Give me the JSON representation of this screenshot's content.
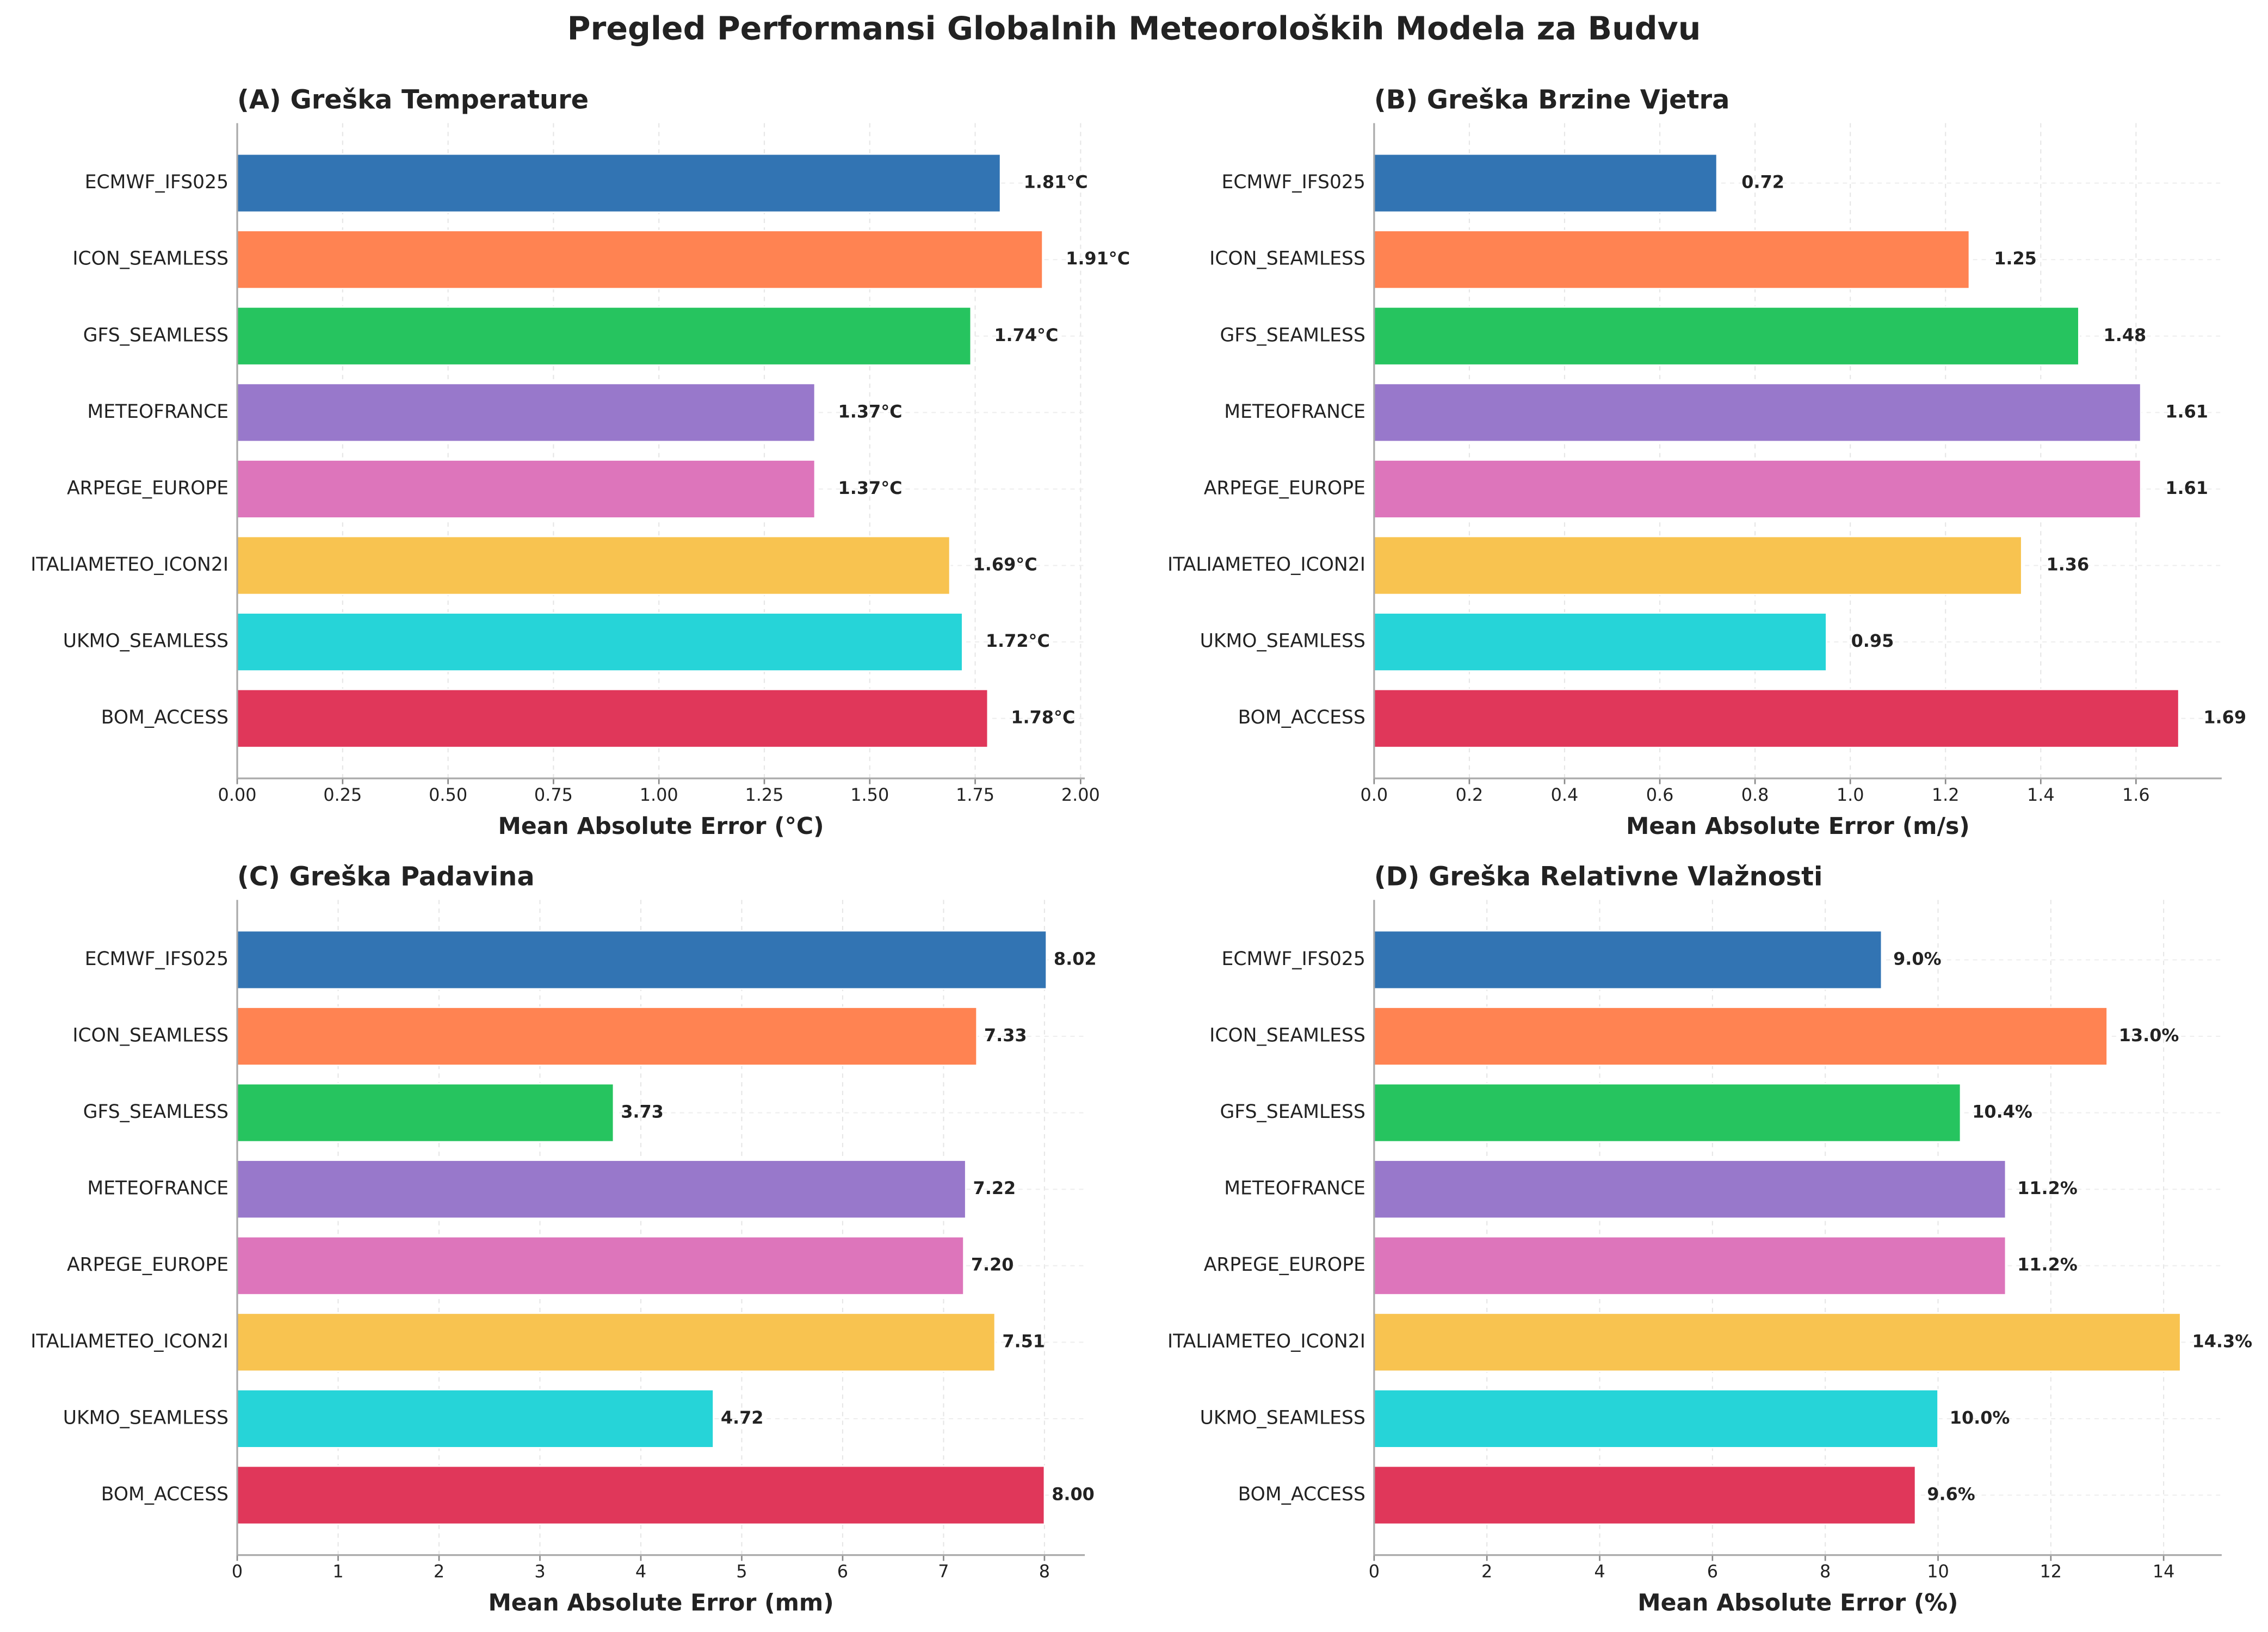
{
  "title": "Pregled Performansi Globalnih Meteoroloških Modela za Budvu",
  "chart_data": [
    {
      "type": "bar",
      "orientation": "horizontal",
      "title": "(A) Greška Temperature",
      "x_label": "Mean Absolute Error (°C)",
      "categories": [
        "ECMWF_IFS025",
        "ICON_SEAMLESS",
        "GFS_SEAMLESS",
        "METEOFRANCE",
        "ARPEGE_EUROPE",
        "ITALIAMETEO_ICON2I",
        "UKMO_SEAMLESS",
        "BOM_ACCESS"
      ],
      "colors": [
        "#3274b3",
        "#ff8352",
        "#26c45f",
        "#9878cb",
        "#dd75bb",
        "#f8c350",
        "#26d4d8",
        "#e0375a"
      ],
      "values": [
        1.81,
        1.91,
        1.74,
        1.37,
        1.37,
        1.69,
        1.72,
        1.78
      ],
      "value_labels": [
        "1.81°C",
        "1.91°C",
        "1.74°C",
        "1.37°C",
        "1.37°C",
        "1.69°C",
        "1.72°C",
        "1.78°C"
      ],
      "xlim": [
        0,
        2.01
      ],
      "xticks": [
        {
          "value": 0,
          "label": "0.00"
        },
        {
          "value": 0.25,
          "label": "0.25"
        },
        {
          "value": 0.5,
          "label": "0.50"
        },
        {
          "value": 0.75,
          "label": "0.75"
        },
        {
          "value": 1,
          "label": "1.00"
        },
        {
          "value": 1.25,
          "label": "1.25"
        },
        {
          "value": 1.5,
          "label": "1.50"
        },
        {
          "value": 1.75,
          "label": "1.75"
        },
        {
          "value": 2,
          "label": "2.00"
        }
      ],
      "grid": true
    },
    {
      "type": "bar",
      "orientation": "horizontal",
      "title": "(B) Greška Brzine Vjetra",
      "x_label": "Mean Absolute Error (m/s)",
      "categories": [
        "ECMWF_IFS025",
        "ICON_SEAMLESS",
        "GFS_SEAMLESS",
        "METEOFRANCE",
        "ARPEGE_EUROPE",
        "ITALIAMETEO_ICON2I",
        "UKMO_SEAMLESS",
        "BOM_ACCESS"
      ],
      "colors": [
        "#3274b3",
        "#ff8352",
        "#26c45f",
        "#9878cb",
        "#dd75bb",
        "#f8c350",
        "#26d4d8",
        "#e0375a"
      ],
      "values": [
        0.72,
        1.25,
        1.48,
        1.61,
        1.61,
        1.36,
        0.95,
        1.69
      ],
      "xlim": [
        0,
        1.78
      ],
      "xticks": [
        {
          "value": 0,
          "label": "0.0"
        },
        0.2,
        0.4,
        0.6,
        0.8,
        {
          "value": 1,
          "label": "1.0"
        },
        1.2,
        1.4,
        1.6
      ],
      "grid": true
    },
    {
      "type": "bar",
      "orientation": "horizontal",
      "title": "(C) Greška Padavina",
      "x_label": "Mean Absolute Error (mm)",
      "categories": [
        "ECMWF_IFS025",
        "ICON_SEAMLESS",
        "GFS_SEAMLESS",
        "METEOFRANCE",
        "ARPEGE_EUROPE",
        "ITALIAMETEO_ICON2I",
        "UKMO_SEAMLESS",
        "BOM_ACCESS"
      ],
      "colors": [
        "#3274b3",
        "#ff8352",
        "#26c45f",
        "#9878cb",
        "#dd75bb",
        "#f8c350",
        "#26d4d8",
        "#e0375a"
      ],
      "values": [
        8.02,
        7.33,
        3.73,
        7.22,
        7.2,
        7.51,
        4.72,
        8
      ],
      "value_labels": [
        "8.02",
        "7.33",
        "3.73",
        "7.22",
        "7.20",
        "7.51",
        "4.72",
        "8.00"
      ],
      "xlim": [
        0,
        8.4
      ],
      "xticks": [
        0,
        1,
        2,
        3,
        4,
        5,
        6,
        7,
        8
      ],
      "grid": true
    },
    {
      "type": "bar",
      "orientation": "horizontal",
      "title": "(D) Greška Relativne Vlažnosti",
      "x_label": "Mean Absolute Error (%)",
      "categories": [
        "ECMWF_IFS025",
        "ICON_SEAMLESS",
        "GFS_SEAMLESS",
        "METEOFRANCE",
        "ARPEGE_EUROPE",
        "ITALIAMETEO_ICON2I",
        "UKMO_SEAMLESS",
        "BOM_ACCESS"
      ],
      "colors": [
        "#3274b3",
        "#ff8352",
        "#26c45f",
        "#9878cb",
        "#dd75bb",
        "#f8c350",
        "#26d4d8",
        "#e0375a"
      ],
      "values": [
        9.0,
        13.0,
        10.4,
        11.2,
        11.2,
        14.3,
        10.0,
        9.6
      ],
      "value_labels": [
        "9.0%",
        "13.0%",
        "10.4%",
        "11.2%",
        "11.2%",
        "14.3%",
        "10.0%",
        "9.6%"
      ],
      "xlim": [
        0,
        15.03
      ],
      "xticks": [
        0,
        2,
        4,
        6,
        8,
        10,
        12,
        14
      ],
      "grid": true
    }
  ]
}
